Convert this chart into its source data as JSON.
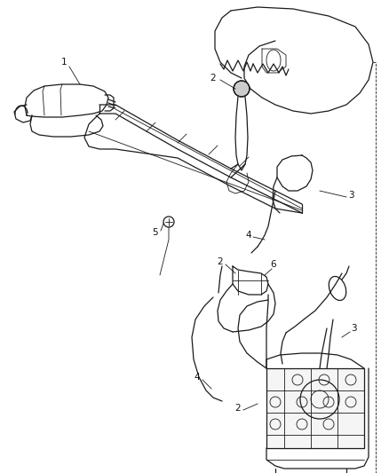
{
  "bg_color": "#ffffff",
  "line_color": "#1a1a1a",
  "label_color": "#111111",
  "fig_width": 4.38,
  "fig_height": 5.33,
  "dpi": 100,
  "lw": 0.9,
  "lw_thin": 0.6,
  "label_fs": 7.5
}
